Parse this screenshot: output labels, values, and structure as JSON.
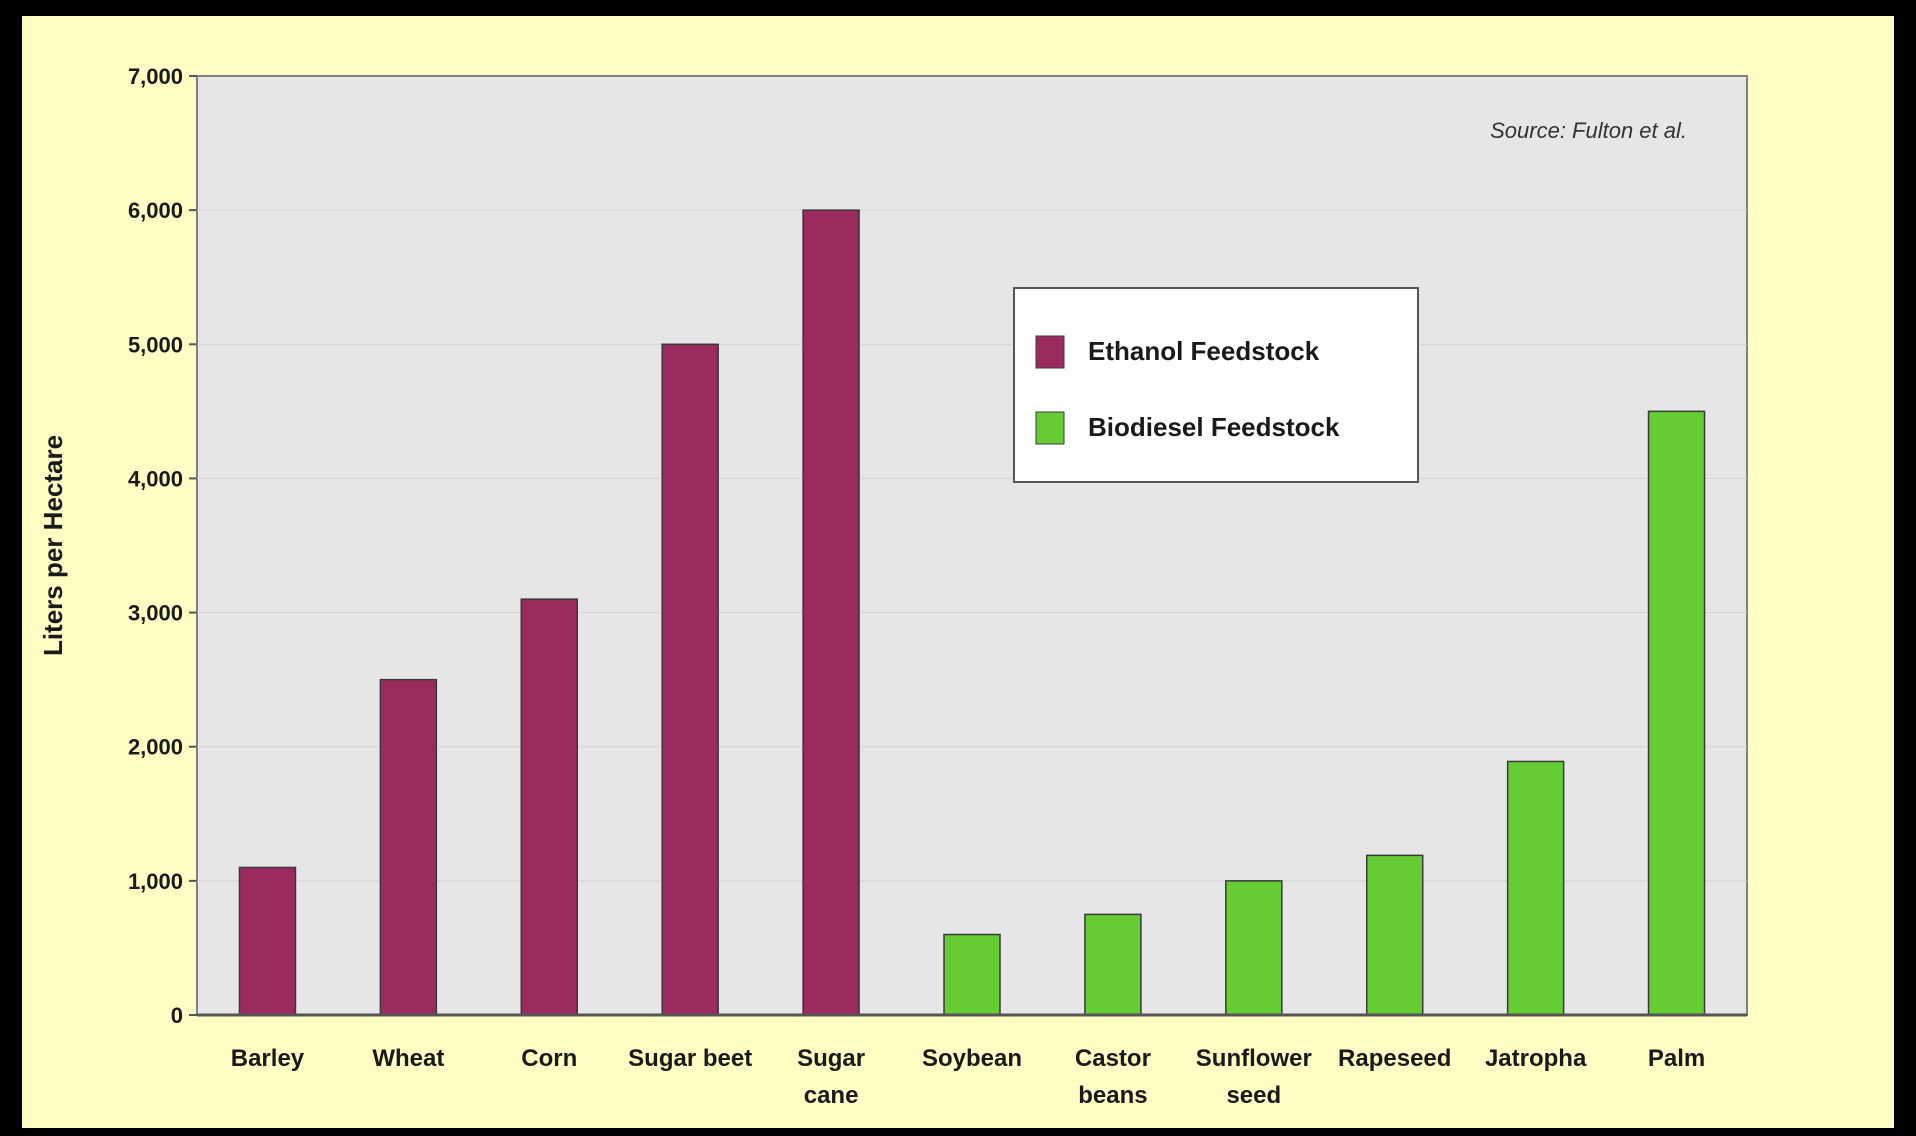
{
  "chart_data": {
    "type": "bar",
    "categories": [
      "Barley",
      "Wheat",
      "Corn",
      "Sugar beet",
      "Sugar cane",
      "Soybean",
      "Castor beans",
      "Sunflower seed",
      "Rapeseed",
      "Jatropha",
      "Palm"
    ],
    "category_labels": [
      [
        "Barley"
      ],
      [
        "Wheat"
      ],
      [
        "Corn"
      ],
      [
        "Sugar beet"
      ],
      [
        "Sugar",
        "cane"
      ],
      [
        "Soybean"
      ],
      [
        "Castor",
        "beans"
      ],
      [
        "Sunflower",
        "seed"
      ],
      [
        "Rapeseed"
      ],
      [
        "Jatropha"
      ],
      [
        "Palm"
      ]
    ],
    "values": [
      1100,
      2500,
      3100,
      5000,
      6000,
      600,
      750,
      1000,
      1190,
      1890,
      4500
    ],
    "groups": [
      "Ethanol Feedstock",
      "Ethanol Feedstock",
      "Ethanol Feedstock",
      "Ethanol Feedstock",
      "Ethanol Feedstock",
      "Biodiesel Feedstock",
      "Biodiesel Feedstock",
      "Biodiesel Feedstock",
      "Biodiesel Feedstock",
      "Biodiesel Feedstock",
      "Biodiesel Feedstock"
    ],
    "ylabel": "Liters per Hectare",
    "ylim": [
      0,
      7000
    ],
    "yticks": [
      0,
      1000,
      2000,
      3000,
      4000,
      5000,
      6000,
      7000
    ],
    "ytick_labels": [
      "0",
      "1,000",
      "2,000",
      "3,000",
      "4,000",
      "5,000",
      "6,000",
      "7,000"
    ],
    "grid": true,
    "legend": {
      "placement": "top-center",
      "entries": [
        {
          "label": "Ethanol Feedstock",
          "color": "#9b2a5e"
        },
        {
          "label": "Biodiesel Feedstock",
          "color": "#66cc33"
        }
      ]
    },
    "annotation": "Source:  Fulton et al."
  },
  "colors": {
    "background": "#fefec4",
    "frame": "#000000",
    "plot_area": "#e6e6e6",
    "grid": "#d4d4d4",
    "ethanol": "#9b2a5e",
    "biodiesel": "#66cc33"
  }
}
